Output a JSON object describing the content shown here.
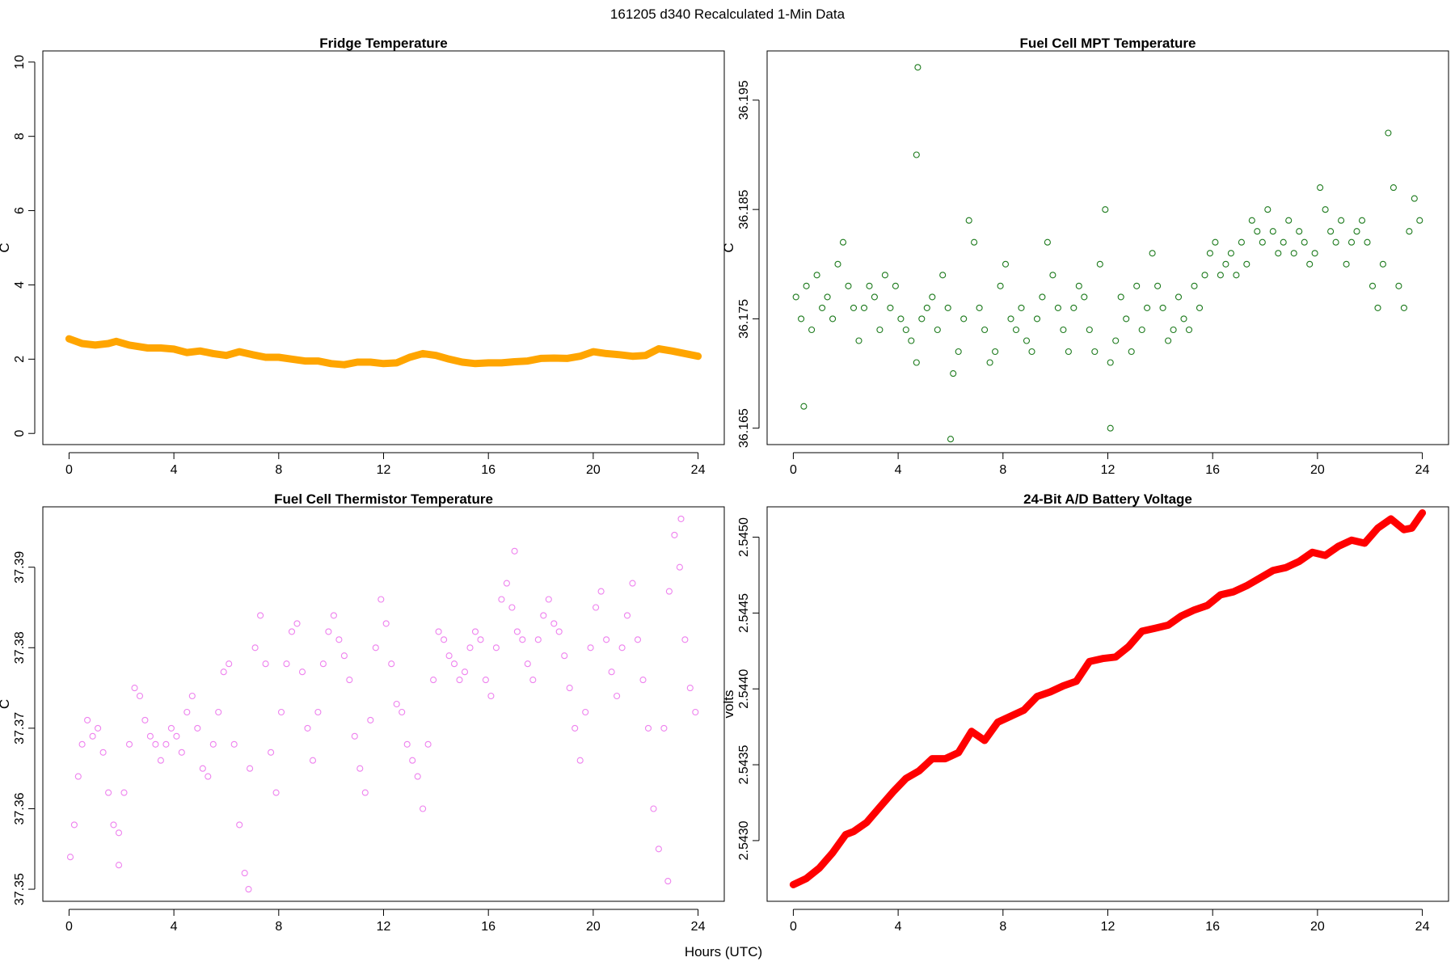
{
  "figure": {
    "suptitle": "161205   d340   Recalculated 1-Min Data",
    "xlabel": "Hours (UTC)"
  },
  "chart_data": [
    {
      "id": "fridge",
      "type": "line",
      "title": "Fridge Temperature",
      "ylabel": "C",
      "xlabel": "",
      "xlim": [
        -1,
        25
      ],
      "ylim": [
        -0.3,
        10.3
      ],
      "xticks": [
        0,
        4,
        8,
        12,
        16,
        20,
        24
      ],
      "xtick_labels": [
        "0",
        "4",
        "8",
        "12",
        "16",
        "20",
        "24"
      ],
      "yticks": [
        0,
        2,
        4,
        6,
        8,
        10
      ],
      "ytick_labels": [
        "0",
        "2",
        "4",
        "6",
        "8",
        "10"
      ],
      "color": "#FFA500",
      "series": [
        {
          "name": "Fridge Temperature",
          "x": [
            0,
            0.5,
            1,
            1.5,
            1.8,
            2.3,
            3,
            3.5,
            4,
            4.5,
            5,
            5.5,
            6,
            6.5,
            7,
            7.5,
            8,
            8.5,
            9,
            9.5,
            10,
            10.5,
            11,
            11.5,
            12,
            12.5,
            13,
            13.5,
            14,
            14.5,
            15,
            15.5,
            16,
            16.5,
            17,
            17.5,
            18,
            18.5,
            19,
            19.5,
            20,
            20.5,
            21,
            21.5,
            22,
            22.5,
            23,
            23.5,
            24
          ],
          "y": [
            2.55,
            2.42,
            2.38,
            2.42,
            2.48,
            2.38,
            2.3,
            2.3,
            2.27,
            2.18,
            2.22,
            2.15,
            2.1,
            2.2,
            2.12,
            2.05,
            2.05,
            2.0,
            1.95,
            1.95,
            1.88,
            1.85,
            1.92,
            1.92,
            1.88,
            1.9,
            2.05,
            2.15,
            2.1,
            2.0,
            1.92,
            1.88,
            1.9,
            1.9,
            1.93,
            1.95,
            2.02,
            2.03,
            2.02,
            2.08,
            2.2,
            2.15,
            2.12,
            2.08,
            2.1,
            2.28,
            2.22,
            2.15,
            2.08
          ]
        }
      ]
    },
    {
      "id": "mpt",
      "type": "scatter",
      "title": "Fuel Cell MPT Temperature",
      "ylabel": "C",
      "xlabel": "",
      "xlim": [
        -1,
        25
      ],
      "ylim": [
        36.1635,
        36.1995
      ],
      "xticks": [
        0,
        4,
        8,
        12,
        16,
        20,
        24
      ],
      "xtick_labels": [
        "0",
        "4",
        "8",
        "12",
        "16",
        "20",
        "24"
      ],
      "yticks": [
        36.165,
        36.175,
        36.185,
        36.195
      ],
      "ytick_labels": [
        "36.165",
        "36.175",
        "36.185",
        "36.195"
      ],
      "color": "#1E7B1E",
      "series": [
        {
          "name": "Fuel Cell MPT Temperature",
          "x": [
            0.1,
            0.3,
            0.5,
            0.7,
            0.9,
            1.1,
            1.3,
            1.5,
            1.7,
            1.9,
            2.1,
            2.3,
            2.5,
            2.7,
            2.9,
            3.1,
            3.3,
            3.5,
            3.7,
            3.9,
            4.1,
            4.3,
            4.5,
            4.7,
            4.9,
            5.1,
            5.3,
            5.5,
            5.7,
            5.9,
            6.1,
            6.3,
            6.5,
            6.7,
            6.9,
            7.1,
            7.3,
            7.5,
            7.7,
            7.9,
            8.1,
            8.3,
            8.5,
            8.7,
            8.9,
            9.1,
            9.3,
            9.5,
            9.7,
            9.9,
            10.1,
            10.3,
            10.5,
            10.7,
            10.9,
            11.1,
            11.3,
            11.5,
            11.7,
            11.9,
            12.1,
            12.3,
            12.5,
            12.7,
            12.9,
            13.1,
            13.3,
            13.5,
            13.7,
            13.9,
            14.1,
            14.3,
            14.5,
            14.7,
            14.9,
            15.1,
            15.3,
            15.5,
            15.7,
            15.9,
            16.1,
            16.3,
            16.5,
            16.7,
            16.9,
            17.1,
            17.3,
            17.5,
            17.7,
            17.9,
            18.1,
            18.3,
            18.5,
            18.7,
            18.9,
            19.1,
            19.3,
            19.5,
            19.7,
            19.9,
            20.1,
            20.3,
            20.5,
            20.7,
            20.9,
            21.1,
            21.3,
            21.5,
            21.7,
            21.9,
            22.1,
            22.3,
            22.5,
            22.7,
            22.9,
            23.1,
            23.3,
            23.5,
            23.7,
            23.9,
            4.75,
            4.7,
            0.4,
            6.0,
            12.1
          ],
          "y": [
            36.177,
            36.175,
            36.178,
            36.174,
            36.179,
            36.176,
            36.177,
            36.175,
            36.18,
            36.182,
            36.178,
            36.176,
            36.173,
            36.176,
            36.178,
            36.177,
            36.174,
            36.179,
            36.176,
            36.178,
            36.175,
            36.174,
            36.173,
            36.171,
            36.175,
            36.176,
            36.177,
            36.174,
            36.179,
            36.176,
            36.17,
            36.172,
            36.175,
            36.184,
            36.182,
            36.176,
            36.174,
            36.171,
            36.172,
            36.178,
            36.18,
            36.175,
            36.174,
            36.176,
            36.173,
            36.172,
            36.175,
            36.177,
            36.182,
            36.179,
            36.176,
            36.174,
            36.172,
            36.176,
            36.178,
            36.177,
            36.174,
            36.172,
            36.18,
            36.185,
            36.171,
            36.173,
            36.177,
            36.175,
            36.172,
            36.178,
            36.174,
            36.176,
            36.181,
            36.178,
            36.176,
            36.173,
            36.174,
            36.177,
            36.175,
            36.174,
            36.178,
            36.176,
            36.179,
            36.181,
            36.182,
            36.179,
            36.18,
            36.181,
            36.179,
            36.182,
            36.18,
            36.184,
            36.183,
            36.182,
            36.185,
            36.183,
            36.181,
            36.182,
            36.184,
            36.181,
            36.183,
            36.182,
            36.18,
            36.181,
            36.187,
            36.185,
            36.183,
            36.182,
            36.184,
            36.18,
            36.182,
            36.183,
            36.184,
            36.182,
            36.178,
            36.176,
            36.18,
            36.192,
            36.187,
            36.178,
            36.176,
            36.183,
            36.186,
            36.184,
            36.198,
            36.19,
            36.167,
            36.164,
            36.165
          ]
        }
      ]
    },
    {
      "id": "thermistor",
      "type": "scatter",
      "title": "Fuel Cell Thermistor Temperature",
      "ylabel": "C",
      "xlabel": "",
      "xlim": [
        -1,
        25
      ],
      "ylim": [
        37.3485,
        37.3975
      ],
      "xticks": [
        0,
        4,
        8,
        12,
        16,
        20,
        24
      ],
      "xtick_labels": [
        "0",
        "4",
        "8",
        "12",
        "16",
        "20",
        "24"
      ],
      "yticks": [
        37.35,
        37.36,
        37.37,
        37.38,
        37.39
      ],
      "ytick_labels": [
        "37.35",
        "37.36",
        "37.37",
        "37.38",
        "37.39"
      ],
      "color": "#EE82EE",
      "series": [
        {
          "name": "Fuel Cell Thermistor Temperature",
          "x": [
            0.05,
            0.2,
            0.35,
            0.5,
            0.7,
            0.9,
            1.1,
            1.3,
            1.5,
            1.7,
            1.9,
            2.1,
            2.3,
            2.5,
            2.7,
            2.9,
            3.1,
            3.3,
            3.5,
            3.7,
            3.9,
            4.1,
            4.3,
            4.5,
            4.7,
            4.9,
            5.1,
            5.3,
            5.5,
            5.7,
            5.9,
            6.1,
            6.3,
            6.5,
            6.7,
            6.9,
            7.1,
            7.3,
            7.5,
            7.7,
            7.9,
            8.1,
            8.3,
            8.5,
            8.7,
            8.9,
            9.1,
            9.3,
            9.5,
            9.7,
            9.9,
            10.1,
            10.3,
            10.5,
            10.7,
            10.9,
            11.1,
            11.3,
            11.5,
            11.7,
            11.9,
            12.1,
            12.3,
            12.5,
            12.7,
            12.9,
            13.1,
            13.3,
            13.5,
            13.7,
            13.9,
            14.1,
            14.3,
            14.5,
            14.7,
            14.9,
            15.1,
            15.3,
            15.5,
            15.7,
            15.9,
            16.1,
            16.3,
            16.5,
            16.7,
            16.9,
            17.1,
            17.3,
            17.5,
            17.7,
            17.9,
            18.1,
            18.3,
            18.5,
            18.7,
            18.9,
            19.1,
            19.3,
            19.5,
            19.7,
            19.9,
            20.1,
            20.3,
            20.5,
            20.7,
            20.9,
            21.1,
            21.3,
            21.5,
            21.7,
            21.9,
            22.1,
            22.3,
            22.5,
            22.7,
            22.9,
            23.1,
            23.3,
            23.5,
            23.7,
            23.9,
            6.85,
            1.9,
            22.85,
            23.35,
            17.0
          ],
          "y": [
            37.354,
            37.358,
            37.364,
            37.368,
            37.371,
            37.369,
            37.37,
            37.367,
            37.362,
            37.358,
            37.357,
            37.362,
            37.368,
            37.375,
            37.374,
            37.371,
            37.369,
            37.368,
            37.366,
            37.368,
            37.37,
            37.369,
            37.367,
            37.372,
            37.374,
            37.37,
            37.365,
            37.364,
            37.368,
            37.372,
            37.377,
            37.378,
            37.368,
            37.358,
            37.352,
            37.365,
            37.38,
            37.384,
            37.378,
            37.367,
            37.362,
            37.372,
            37.378,
            37.382,
            37.383,
            37.377,
            37.37,
            37.366,
            37.372,
            37.378,
            37.382,
            37.384,
            37.381,
            37.379,
            37.376,
            37.369,
            37.365,
            37.362,
            37.371,
            37.38,
            37.386,
            37.383,
            37.378,
            37.373,
            37.372,
            37.368,
            37.366,
            37.364,
            37.36,
            37.368,
            37.376,
            37.382,
            37.381,
            37.379,
            37.378,
            37.376,
            37.377,
            37.38,
            37.382,
            37.381,
            37.376,
            37.374,
            37.38,
            37.386,
            37.388,
            37.385,
            37.382,
            37.381,
            37.378,
            37.376,
            37.381,
            37.384,
            37.386,
            37.383,
            37.382,
            37.379,
            37.375,
            37.37,
            37.366,
            37.372,
            37.38,
            37.385,
            37.387,
            37.381,
            37.377,
            37.374,
            37.38,
            37.384,
            37.388,
            37.381,
            37.376,
            37.37,
            37.36,
            37.355,
            37.37,
            37.387,
            37.394,
            37.39,
            37.381,
            37.375,
            37.372,
            37.35,
            37.353,
            37.351,
            37.396,
            37.392
          ]
        }
      ]
    },
    {
      "id": "battery",
      "type": "line",
      "title": "24-Bit A/D Battery Voltage",
      "ylabel": "volts",
      "xlabel": "",
      "xlim": [
        -1,
        25
      ],
      "ylim": [
        2.5426,
        2.5452
      ],
      "xticks": [
        0,
        4,
        8,
        12,
        16,
        20,
        24
      ],
      "xtick_labels": [
        "0",
        "4",
        "8",
        "12",
        "16",
        "20",
        "24"
      ],
      "yticks": [
        2.543,
        2.5435,
        2.544,
        2.5445,
        2.545
      ],
      "ytick_labels": [
        "2.5430",
        "2.5435",
        "2.5440",
        "2.5445",
        "2.5450"
      ],
      "color": "#FF0000",
      "series": [
        {
          "name": "24-Bit A/D Battery Voltage",
          "x": [
            0,
            0.5,
            1,
            1.5,
            2,
            2.3,
            2.8,
            3.3,
            3.8,
            4.3,
            4.8,
            5.3,
            5.8,
            6.3,
            6.8,
            7.3,
            7.8,
            8.3,
            8.8,
            9.3,
            9.8,
            10.3,
            10.8,
            11.3,
            11.8,
            12.3,
            12.8,
            13.3,
            13.8,
            14.3,
            14.8,
            15.3,
            15.8,
            16.3,
            16.8,
            17.3,
            17.8,
            18.3,
            18.8,
            19.3,
            19.8,
            20.3,
            20.8,
            21.3,
            21.8,
            22.3,
            22.8,
            23.3,
            23.6,
            24
          ],
          "y": [
            2.54271,
            2.54275,
            2.54282,
            2.54292,
            2.54304,
            2.54306,
            2.54312,
            2.54322,
            2.54332,
            2.54341,
            2.54346,
            2.54354,
            2.54354,
            2.54358,
            2.54372,
            2.54366,
            2.54378,
            2.54382,
            2.54386,
            2.54395,
            2.54398,
            2.54402,
            2.54405,
            2.54418,
            2.5442,
            2.54421,
            2.54428,
            2.54438,
            2.5444,
            2.54442,
            2.54448,
            2.54452,
            2.54455,
            2.54462,
            2.54464,
            2.54468,
            2.54473,
            2.54478,
            2.5448,
            2.54484,
            2.5449,
            2.54488,
            2.54494,
            2.54498,
            2.54496,
            2.54506,
            2.54512,
            2.54505,
            2.54506,
            2.54516
          ]
        }
      ]
    }
  ]
}
